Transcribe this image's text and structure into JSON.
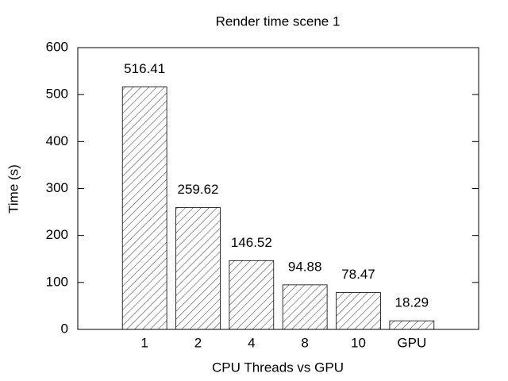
{
  "chart_data": {
    "type": "bar",
    "title": "Render time scene 1",
    "xlabel": "CPU Threads vs GPU",
    "ylabel": "Time (s)",
    "categories": [
      "1",
      "2",
      "4",
      "8",
      "10",
      "GPU"
    ],
    "values": [
      516.41,
      259.62,
      146.52,
      94.88,
      78.47,
      18.29
    ],
    "color": "#000000",
    "ylim": [
      0,
      600
    ],
    "yticks": [
      0,
      100,
      200,
      300,
      400,
      500,
      600
    ],
    "show_values": true
  }
}
